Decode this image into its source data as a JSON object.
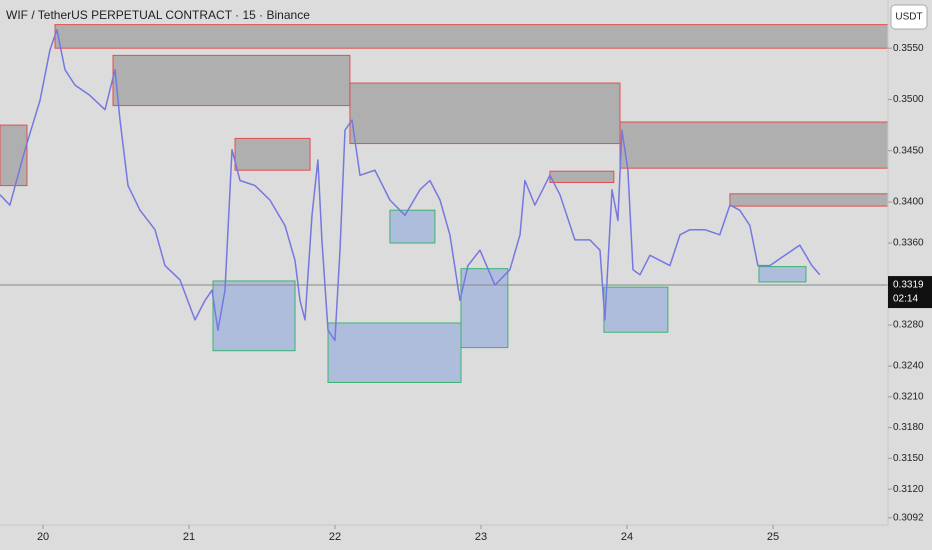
{
  "chart_data": {
    "type": "line",
    "title": "WIF / TetherUS PERPETUAL CONTRACT · 15 · Binance",
    "currency_button": "USDT",
    "countdown": "02:14",
    "last_price": 0.3319,
    "x": [
      19.705,
      19.773,
      19.876,
      19.979,
      20.047,
      20.095,
      20.15,
      20.219,
      20.321,
      20.424,
      20.493,
      20.527,
      20.582,
      20.664,
      20.767,
      20.835,
      20.938,
      21.041,
      21.109,
      21.157,
      21.198,
      21.246,
      21.294,
      21.349,
      21.452,
      21.554,
      21.657,
      21.726,
      21.76,
      21.794,
      21.842,
      21.883,
      21.91,
      21.952,
      21.999,
      22.034,
      22.068,
      22.116,
      22.171,
      22.273,
      22.376,
      22.479,
      22.582,
      22.65,
      22.719,
      22.787,
      22.856,
      22.91,
      22.993,
      23.095,
      23.198,
      23.267,
      23.301,
      23.369,
      23.472,
      23.541,
      23.643,
      23.746,
      23.815,
      23.849,
      23.897,
      23.938,
      23.965,
      24.006,
      24.041,
      24.089,
      24.157,
      24.226,
      24.294,
      24.363,
      24.431,
      24.534,
      24.636,
      24.705,
      24.773,
      24.842,
      24.897,
      24.979,
      25.082,
      25.184,
      25.267,
      25.321
    ],
    "series": [
      {
        "color": "#7478e0",
        "values": [
          0.3407,
          0.3397,
          0.3451,
          0.3499,
          0.3548,
          0.3568,
          0.3529,
          0.3514,
          0.3504,
          0.349,
          0.3529,
          0.348,
          0.3416,
          0.3392,
          0.3373,
          0.3338,
          0.3324,
          0.3285,
          0.3304,
          0.3314,
          0.3275,
          0.3314,
          0.3451,
          0.3421,
          0.3416,
          0.3402,
          0.3377,
          0.3343,
          0.3304,
          0.3285,
          0.3387,
          0.3441,
          0.3363,
          0.3275,
          0.3265,
          0.3353,
          0.347,
          0.348,
          0.3426,
          0.3431,
          0.3402,
          0.3387,
          0.3412,
          0.3421,
          0.3402,
          0.3368,
          0.3304,
          0.3338,
          0.3353,
          0.3319,
          0.3334,
          0.3368,
          0.3421,
          0.3397,
          0.3426,
          0.3407,
          0.3363,
          0.3363,
          0.3353,
          0.3285,
          0.3412,
          0.3382,
          0.347,
          0.3431,
          0.3334,
          0.3329,
          0.3348,
          0.3343,
          0.3338,
          0.3368,
          0.3373,
          0.3373,
          0.3368,
          0.3397,
          0.3392,
          0.3377,
          0.3338,
          0.3338,
          0.3348,
          0.3358,
          0.3338,
          0.3329
        ]
      }
    ],
    "supply_zones": [
      {
        "x": [
          19.705,
          19.89
        ],
        "y": [
          0.3475,
          0.3416
        ]
      },
      {
        "x": [
          20.082,
          25.788
        ],
        "y": [
          0.3573,
          0.355
        ]
      },
      {
        "x": [
          20.479,
          22.102
        ],
        "y": [
          0.3543,
          0.3494
        ]
      },
      {
        "x": [
          21.315,
          21.829
        ],
        "y": [
          0.3462,
          0.3431
        ]
      },
      {
        "x": [
          22.102,
          23.952
        ],
        "y": [
          0.3516,
          0.3457
        ]
      },
      {
        "x": [
          23.472,
          23.91
        ],
        "y": [
          0.343,
          0.3419
        ]
      },
      {
        "x": [
          23.952,
          25.788
        ],
        "y": [
          0.3478,
          0.3433
        ]
      },
      {
        "x": [
          24.705,
          25.788
        ],
        "y": [
          0.3408,
          0.3396
        ]
      }
    ],
    "demand_zones": [
      {
        "x": [
          21.164,
          21.726
        ],
        "y": [
          0.3323,
          0.3255
        ]
      },
      {
        "x": [
          21.952,
          22.863
        ],
        "y": [
          0.3282,
          0.3224
        ]
      },
      {
        "x": [
          22.376,
          22.684
        ],
        "y": [
          0.3392,
          0.336
        ]
      },
      {
        "x": [
          22.863,
          23.184
        ],
        "y": [
          0.3335,
          0.3258
        ]
      },
      {
        "x": [
          23.842,
          24.28
        ],
        "y": [
          0.3317,
          0.3273
        ]
      },
      {
        "x": [
          24.904,
          25.226
        ],
        "y": [
          0.3337,
          0.3322
        ]
      }
    ],
    "supply_color": "#e05050",
    "demand_color": "#3cb371",
    "xlim": [
      19.705,
      25.788
    ],
    "xticks": [
      20,
      21,
      22,
      23,
      24,
      25
    ],
    "ylim": [
      0.3085,
      0.3597
    ],
    "yticks": [
      {
        "value": 0.355,
        "label": "0.3550"
      },
      {
        "value": 0.35,
        "label": "0.3500"
      },
      {
        "value": 0.345,
        "label": "0.3450"
      },
      {
        "value": 0.34,
        "label": "0.3400"
      },
      {
        "value": 0.336,
        "label": "0.3360"
      },
      {
        "value": 0.328,
        "label": "0.3280"
      },
      {
        "value": 0.324,
        "label": "0.3240"
      },
      {
        "value": 0.321,
        "label": "0.3210"
      },
      {
        "value": 0.318,
        "label": "0.3180"
      },
      {
        "value": 0.315,
        "label": "0.3150"
      },
      {
        "value": 0.312,
        "label": "0.3120"
      },
      0.3092
    ]
  }
}
